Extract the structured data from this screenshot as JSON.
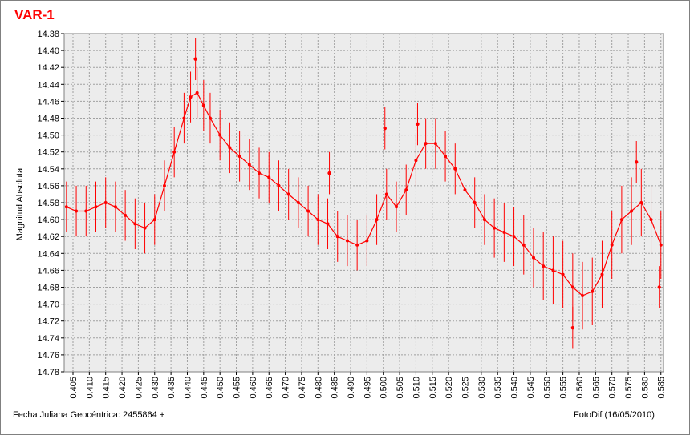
{
  "colors": {
    "series": "#ff0000",
    "plot_bg": "#ececec",
    "grid": "#a0a0a0",
    "title": "#ff0000"
  },
  "chart_data": {
    "type": "scatter",
    "title": "VAR-1",
    "ylabel": "Magnitud Absoluta",
    "xlabel": "Fecha Juliana Geocéntrica: 2455864 +",
    "credit": "FotoDif (16/05/2010)",
    "xlim": [
      0.4023,
      0.5858
    ],
    "ylim": [
      14.38,
      14.78
    ],
    "y_inverted": true,
    "grid": true,
    "error_bars": true,
    "xticks": [
      "0.405",
      "0.410",
      "0.415",
      "0.420",
      "0.425",
      "0.430",
      "0.435",
      "0.440",
      "0.445",
      "0.450",
      "0.455",
      "0.460",
      "0.465",
      "0.470",
      "0.475",
      "0.480",
      "0.485",
      "0.490",
      "0.495",
      "0.500",
      "0.505",
      "0.510",
      "0.515",
      "0.520",
      "0.525",
      "0.530",
      "0.535",
      "0.540",
      "0.545",
      "0.550",
      "0.555",
      "0.560",
      "0.565",
      "0.570",
      "0.575",
      "0.580",
      "0.585"
    ],
    "yticks": [
      "14.38",
      "14.40",
      "14.42",
      "14.44",
      "14.46",
      "14.48",
      "14.50",
      "14.52",
      "14.54",
      "14.56",
      "14.58",
      "14.60",
      "14.62",
      "14.64",
      "14.66",
      "14.68",
      "14.70",
      "14.72",
      "14.74",
      "14.76",
      "14.78"
    ],
    "series": [
      {
        "x": [
          0.403,
          0.406,
          0.409,
          0.412,
          0.415,
          0.418,
          0.421,
          0.424,
          0.427,
          0.43,
          0.433,
          0.436,
          0.439,
          0.441,
          0.443,
          0.445,
          0.447,
          0.45,
          0.453,
          0.456,
          0.459,
          0.462,
          0.465,
          0.468,
          0.471,
          0.474,
          0.477,
          0.48,
          0.483,
          0.486,
          0.489,
          0.492,
          0.495,
          0.498,
          0.501,
          0.504,
          0.507,
          0.51,
          0.513,
          0.516,
          0.519,
          0.522,
          0.525,
          0.528,
          0.531,
          0.534,
          0.537,
          0.54,
          0.543,
          0.546,
          0.549,
          0.552,
          0.555,
          0.558,
          0.561,
          0.564,
          0.567,
          0.57,
          0.573,
          0.576,
          0.579,
          0.582,
          0.585
        ],
        "y": [
          14.585,
          14.59,
          14.59,
          14.585,
          14.58,
          14.585,
          14.595,
          14.605,
          14.61,
          14.6,
          14.56,
          14.52,
          14.48,
          14.455,
          14.45,
          14.465,
          14.48,
          14.5,
          14.515,
          14.525,
          14.535,
          14.545,
          14.55,
          14.56,
          14.57,
          14.58,
          14.59,
          14.6,
          14.605,
          14.62,
          14.625,
          14.63,
          14.625,
          14.6,
          14.57,
          14.585,
          14.565,
          14.53,
          14.51,
          14.51,
          14.525,
          14.54,
          14.565,
          14.58,
          14.6,
          14.61,
          14.615,
          14.62,
          14.63,
          14.645,
          14.655,
          14.66,
          14.665,
          14.68,
          14.69,
          14.685,
          14.665,
          14.63,
          14.6,
          14.59,
          14.58,
          14.6,
          14.63
        ],
        "err": [
          0.03,
          0.03,
          0.03,
          0.03,
          0.03,
          0.03,
          0.03,
          0.03,
          0.03,
          0.03,
          0.03,
          0.03,
          0.03,
          0.03,
          0.03,
          0.03,
          0.03,
          0.03,
          0.03,
          0.03,
          0.03,
          0.03,
          0.03,
          0.03,
          0.03,
          0.03,
          0.03,
          0.03,
          0.03,
          0.03,
          0.03,
          0.03,
          0.03,
          0.03,
          0.03,
          0.03,
          0.03,
          0.03,
          0.03,
          0.03,
          0.03,
          0.03,
          0.03,
          0.03,
          0.03,
          0.035,
          0.035,
          0.035,
          0.035,
          0.035,
          0.04,
          0.04,
          0.04,
          0.04,
          0.04,
          0.04,
          0.04,
          0.04,
          0.04,
          0.04,
          0.04,
          0.04,
          0.04
        ]
      }
    ],
    "outliers": [
      {
        "x": 0.4425,
        "y": 14.41
      },
      {
        "x": 0.4835,
        "y": 14.545
      },
      {
        "x": 0.5005,
        "y": 14.492
      },
      {
        "x": 0.5105,
        "y": 14.487
      },
      {
        "x": 0.558,
        "y": 14.728
      },
      {
        "x": 0.5775,
        "y": 14.532
      },
      {
        "x": 0.5845,
        "y": 14.68
      }
    ]
  }
}
